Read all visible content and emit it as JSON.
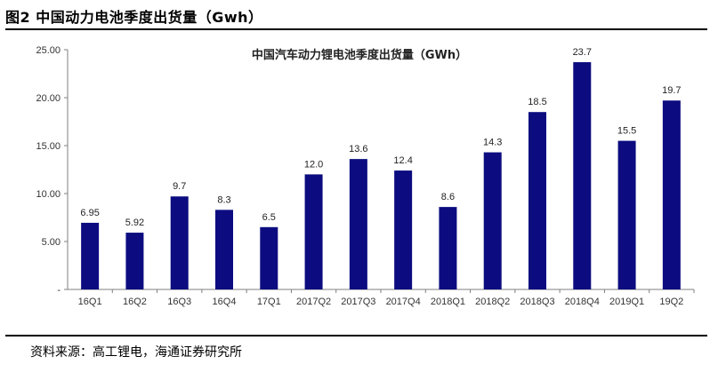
{
  "figure": {
    "title": "图2  中国动力电池季度出货量（Gwh）",
    "source": "资料来源：高工锂电，海通证券研究所"
  },
  "colors": {
    "bar": "#0c0c80",
    "axis": "#7f7f7f"
  },
  "chart_data": {
    "type": "bar",
    "title": "中国汽车动力锂电池季度出货量（GWh）",
    "categories": [
      "16Q1",
      "16Q2",
      "16Q3",
      "16Q4",
      "17Q1",
      "2017Q2",
      "2017Q3",
      "2017Q4",
      "2018Q1",
      "2018Q2",
      "2018Q3",
      "2018Q4",
      "2019Q1",
      "19Q2"
    ],
    "values": [
      6.95,
      5.92,
      9.7,
      8.3,
      6.5,
      12.0,
      13.6,
      12.4,
      8.6,
      14.3,
      18.5,
      23.7,
      15.5,
      19.7
    ],
    "value_labels": [
      "6.95",
      "5.92",
      "9.7",
      "8.3",
      "6.5",
      "12.0",
      "13.6",
      "12.4",
      "8.6",
      "14.3",
      "18.5",
      "23.7",
      "15.5",
      "19.7"
    ],
    "y_ticks": [
      "-",
      "5.00",
      "10.00",
      "15.00",
      "20.00",
      "25.00"
    ],
    "ylim": [
      0,
      25
    ],
    "xlabel": "",
    "ylabel": "",
    "grid": false,
    "legend": "none"
  }
}
